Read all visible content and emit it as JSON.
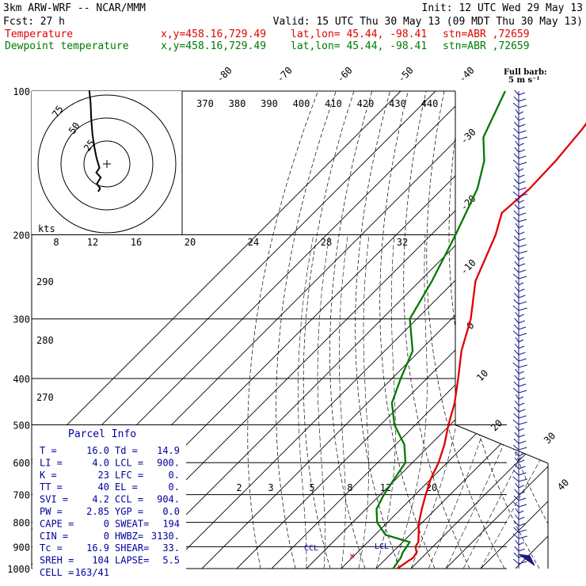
{
  "header": {
    "model": "3km ARW-WRF -- NCAR/MMM",
    "init": "Init: 12 UTC Wed 29 May 13",
    "fcst_label": "Fcst:",
    "fcst_value": "27 h",
    "valid": "Valid: 15 UTC Thu 30 May 13 (09 MDT Thu 30 May 13)",
    "temp_line": {
      "name": "Temperature",
      "xy": "x,y=458.16,729.49",
      "latlon": "lat,lon= 45.44, -98.41",
      "stn": "stn=ABR ,72659"
    },
    "dew_line": {
      "name": "Dewpoint temperature",
      "xy": "x,y=458.16,729.49",
      "latlon": "lat,lon= 45.44, -98.41",
      "stn": "stn=ABR ,72659"
    }
  },
  "barb_key": {
    "line1": "Full barb:",
    "line2": "5 m s⁻¹"
  },
  "hodograph": {
    "units": "kts",
    "ring_labels": [
      "25",
      "50",
      "75"
    ]
  },
  "parcel_info": {
    "title": "Parcel Info",
    "rows": [
      [
        "T   =",
        "16.0",
        "Td =",
        "14.9"
      ],
      [
        "LI  =",
        "4.0",
        "LCL =",
        "900."
      ],
      [
        "K   =",
        "23",
        "LFC =",
        "0."
      ],
      [
        "TT  =",
        "40",
        "EL  =",
        "0."
      ],
      [
        "SVI =",
        "4.2",
        "CCL =",
        "904."
      ],
      [
        "PW  =",
        "2.85",
        "YGP =",
        "0.0"
      ],
      [
        "CAPE =",
        "0",
        "SWEAT=",
        "194"
      ],
      [
        "CIN  =",
        "0",
        "HWBZ=",
        "3130."
      ],
      [
        "Tc  =",
        "16.9",
        "SHEAR=",
        "33."
      ],
      [
        "SREH =",
        "104",
        "LAPSE=",
        "5.5"
      ],
      [
        "CELL =",
        "163/41",
        "",
        ""
      ]
    ]
  },
  "markers": {
    "ccl": "CCL",
    "lcl": "LCL",
    "cross": "×"
  },
  "chart_data": {
    "type": "line",
    "title": "",
    "xlabel": "",
    "ylabel": "",
    "pressure_levels": [
      100,
      200,
      300,
      400,
      500,
      600,
      700,
      800,
      900,
      1000
    ],
    "pressure_range": [
      100,
      1000
    ],
    "isotherm_labels": [
      "-80",
      "-70",
      "-60",
      "-50",
      "-40",
      "-30",
      "-20",
      "-10",
      "0",
      "10",
      "20",
      "30",
      "40"
    ],
    "theta_labels": [
      "370",
      "380",
      "390",
      "400",
      "410",
      "420",
      "430",
      "440"
    ],
    "top_row_labels": [
      "8",
      "12",
      "16",
      "20",
      "24",
      "28",
      "32"
    ],
    "mixing_ratio_labels": [
      "2",
      "3",
      "5",
      "8",
      "12",
      "20"
    ],
    "lower_theta_labels": [
      "290",
      "280",
      "270"
    ],
    "series": [
      {
        "name": "Temperature",
        "color": "#e00000",
        "points": [
          [
            1000,
            16.0
          ],
          [
            985,
            16.5
          ],
          [
            965,
            17.0
          ],
          [
            950,
            17.5
          ],
          [
            925,
            17.0
          ],
          [
            900,
            15.0
          ],
          [
            880,
            14.5
          ],
          [
            850,
            12.5
          ],
          [
            800,
            9.0
          ],
          [
            750,
            6.0
          ],
          [
            700,
            3.0
          ],
          [
            650,
            0.0
          ],
          [
            600,
            -2.5
          ],
          [
            550,
            -6.0
          ],
          [
            500,
            -10.5
          ],
          [
            450,
            -15.0
          ],
          [
            400,
            -21.0
          ],
          [
            350,
            -28.0
          ],
          [
            300,
            -34.5
          ],
          [
            250,
            -44.0
          ],
          [
            200,
            -51.5
          ],
          [
            180,
            -56.0
          ],
          [
            160,
            -55.0
          ],
          [
            140,
            -55.5
          ],
          [
            120,
            -57.0
          ],
          [
            100,
            -60.0
          ]
        ]
      },
      {
        "name": "Dewpoint temperature",
        "color": "#007a00",
        "points": [
          [
            1000,
            14.9
          ],
          [
            985,
            14.6
          ],
          [
            965,
            14.2
          ],
          [
            950,
            14.0
          ],
          [
            925,
            13.0
          ],
          [
            900,
            12.5
          ],
          [
            880,
            12.0
          ],
          [
            850,
            3.0
          ],
          [
            800,
            -3.0
          ],
          [
            750,
            -7.0
          ],
          [
            700,
            -9.0
          ],
          [
            650,
            -10.5
          ],
          [
            600,
            -12.0
          ],
          [
            550,
            -17.5
          ],
          [
            500,
            -26.0
          ],
          [
            450,
            -33.0
          ],
          [
            400,
            -37.5
          ],
          [
            350,
            -42.0
          ],
          [
            300,
            -52.0
          ],
          [
            250,
            -56.5
          ],
          [
            200,
            -63.0
          ],
          [
            160,
            -70.0
          ],
          [
            140,
            -76.0
          ],
          [
            125,
            -83.0
          ],
          [
            100,
            -90.0
          ]
        ]
      }
    ],
    "hodograph_points_kts": [
      [
        0,
        -22
      ],
      [
        3,
        -20
      ],
      [
        -2,
        -17
      ],
      [
        4,
        -13
      ],
      [
        -3,
        -10
      ],
      [
        2,
        -7
      ],
      [
        -1,
        -3
      ],
      [
        -3,
        0
      ],
      [
        -6,
        6
      ],
      [
        -9,
        14
      ],
      [
        -11,
        24
      ],
      [
        -12,
        34
      ],
      [
        -13,
        38
      ],
      [
        -14,
        42
      ]
    ]
  }
}
